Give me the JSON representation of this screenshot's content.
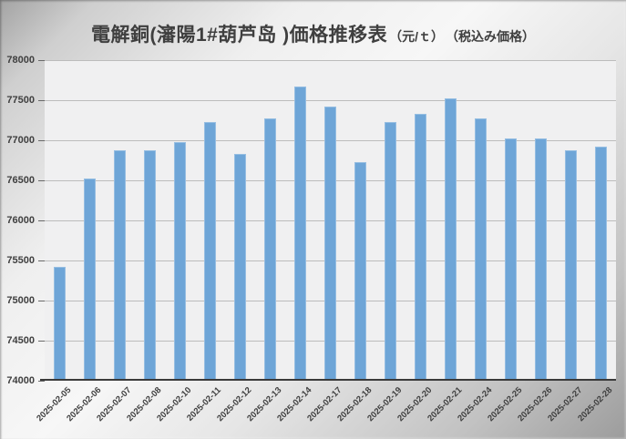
{
  "title": {
    "main": "電解銅(瀋陽1#葫芦岛 )価格推移表",
    "unit": "（元/ｔ）",
    "note": "（税込み価格）"
  },
  "chart_data": {
    "type": "bar",
    "title": "電解銅(瀋陽1#葫芦岛 )価格推移表（元/ｔ）（税込み価格）",
    "xlabel": "",
    "ylabel": "",
    "categories": [
      "2025-02-05",
      "2025-02-06",
      "2025-02-07",
      "2025-02-08",
      "2025-02-10",
      "2025-02-11",
      "2025-02-12",
      "2025-02-13",
      "2025-02-14",
      "2025-02-17",
      "2025-02-18",
      "2025-02-19",
      "2025-02-20",
      "2025-02-21",
      "2025-02-24",
      "2025-02-25",
      "2025-02-26",
      "2025-02-27",
      "2025-02-28"
    ],
    "values": [
      75425,
      76525,
      76875,
      76875,
      76975,
      77225,
      76825,
      77275,
      77675,
      77425,
      76725,
      77225,
      77325,
      77525,
      77275,
      77025,
      77025,
      76875,
      76925
    ],
    "ylim": [
      74000,
      78000
    ],
    "yticks": [
      74000,
      74500,
      75000,
      75500,
      76000,
      76500,
      77000,
      77500,
      78000
    ],
    "grid": true,
    "legend": false,
    "bar_color": "#6ea5d7",
    "plot_bg": "#f0f0f1",
    "gridline_color": "#bcbcbc",
    "axis_color": "#3a3a3a",
    "label_color": "#3f3f3f"
  }
}
